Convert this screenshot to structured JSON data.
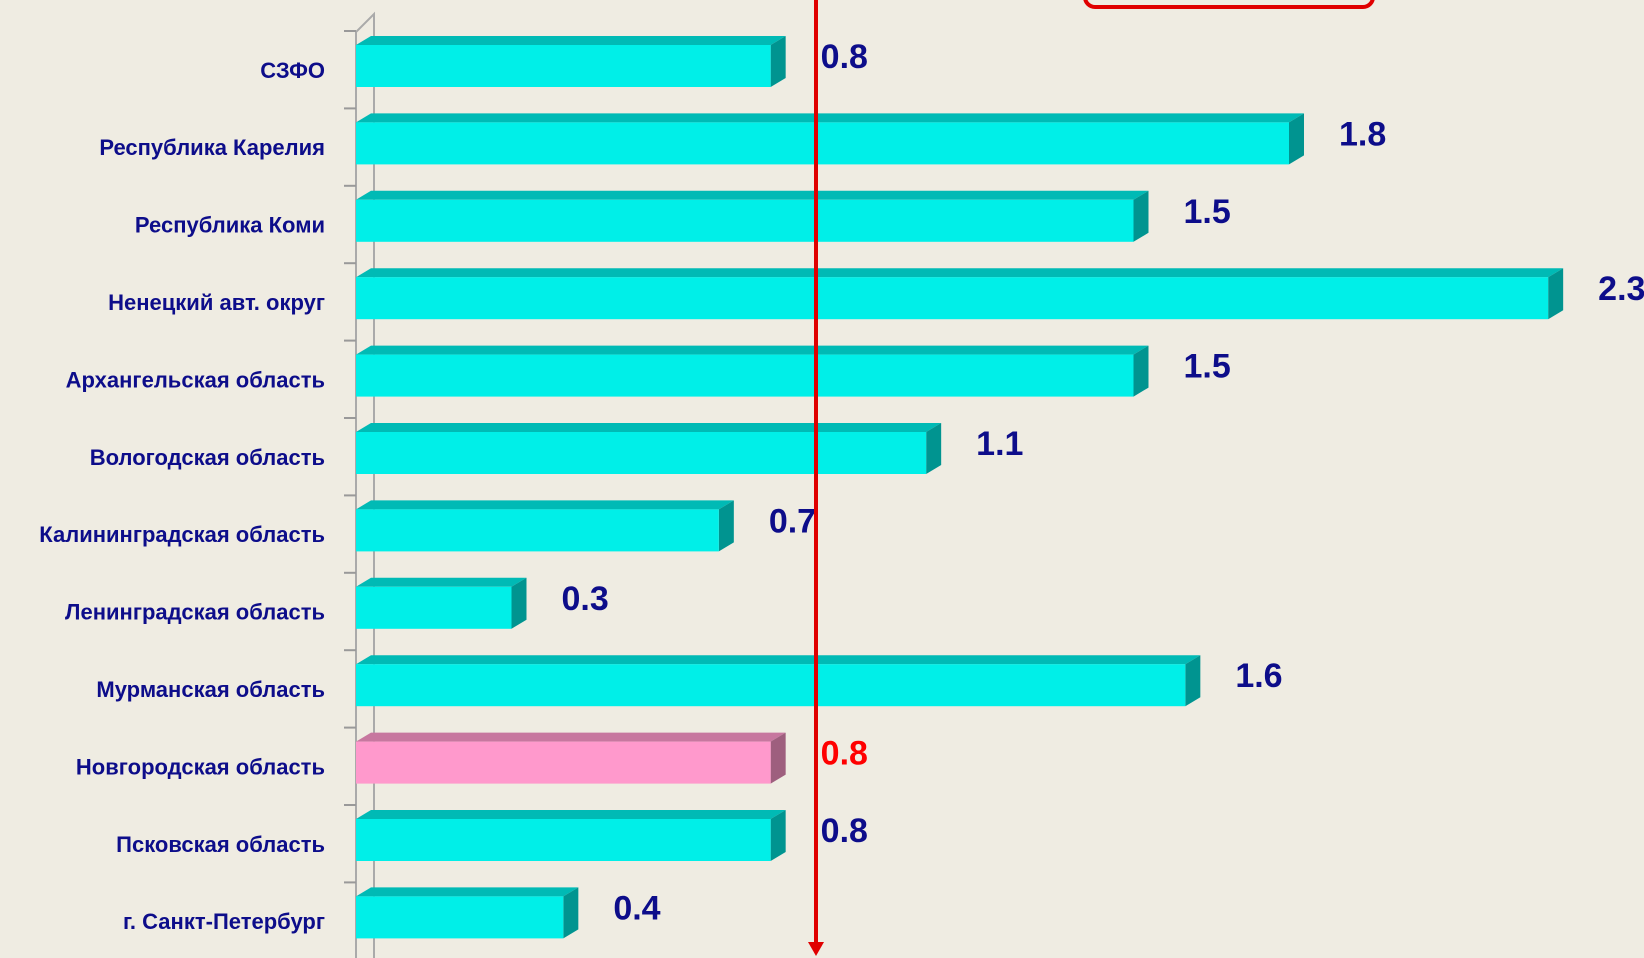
{
  "chart_data": {
    "type": "bar",
    "orientation": "horizontal",
    "categories": [
      "СЗФО",
      "Республика Карелия",
      "Республика Коми",
      "Ненецкий авт. округ",
      "Архангельская область",
      "Вологодская область",
      "Калининградская область",
      "Ленинградская область",
      "Мурманская область",
      "Новгородская область",
      "Псковская область",
      "г. Санкт-Петербург"
    ],
    "values": [
      0.8,
      1.8,
      1.5,
      2.3,
      1.5,
      1.1,
      0.7,
      0.3,
      1.6,
      0.8,
      0.8,
      0.4
    ],
    "colors": [
      "#00efe8",
      "#00efe8",
      "#00efe8",
      "#00efe8",
      "#00efe8",
      "#00efe8",
      "#00efe8",
      "#00efe8",
      "#00efe8",
      "#ff99cc",
      "#00efe8",
      "#00efe8"
    ],
    "value_label_colors": [
      "#0d0d8a",
      "#0d0d8a",
      "#0d0d8a",
      "#0d0d8a",
      "#0d0d8a",
      "#0d0d8a",
      "#0d0d8a",
      "#0d0d8a",
      "#0d0d8a",
      "#ff0000",
      "#0d0d8a",
      "#0d0d8a"
    ],
    "xlim": [
      0,
      2.4
    ]
  }
}
